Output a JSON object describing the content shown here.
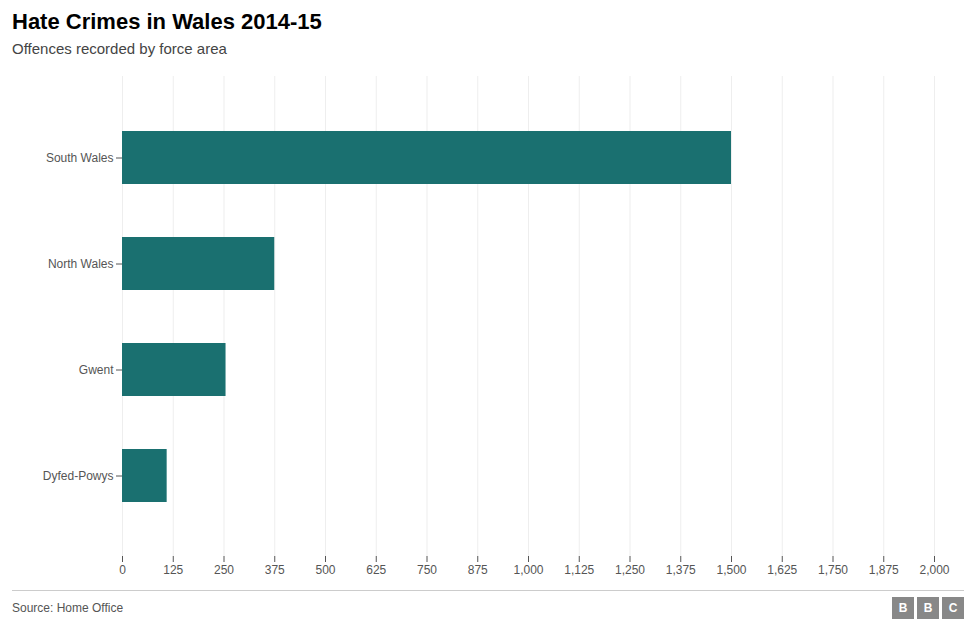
{
  "chart_data": {
    "type": "bar",
    "orientation": "horizontal",
    "title": "Hate Crimes in Wales 2014-15",
    "subtitle": "Offences recorded by force area",
    "caption": "Source: Home Office",
    "annotations": [
      "BBC"
    ],
    "categories": [
      "South Wales",
      "North Wales",
      "Gwent",
      "Dyfed-Powys"
    ],
    "values": [
      1500,
      375,
      255,
      110
    ],
    "color": "#1a7070",
    "xlim": [
      0,
      2000
    ],
    "xticks": [
      0,
      125,
      250,
      375,
      500,
      625,
      750,
      875,
      {
        "value": 1000,
        "label": "1,000"
      },
      {
        "value": 1125,
        "label": "1,125"
      },
      {
        "value": 1250,
        "label": "1,250"
      },
      {
        "value": 1375,
        "label": "1,375"
      },
      {
        "value": 1500,
        "label": "1,500"
      },
      {
        "value": 1625,
        "label": "1,625"
      },
      {
        "value": 1750,
        "label": "1,750"
      },
      {
        "value": 1875,
        "label": "1,875"
      },
      {
        "value": 2000,
        "label": "2,000"
      }
    ],
    "grid": true
  }
}
